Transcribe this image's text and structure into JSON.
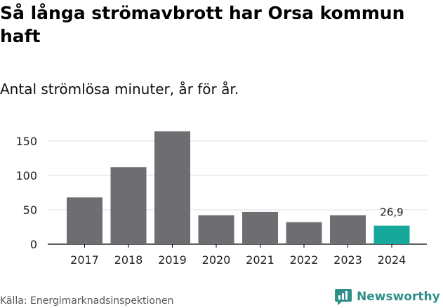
{
  "title": "Så långa strömavbrott har Orsa kommun haft",
  "subtitle": "Antal strömlösa minuter, år för år.",
  "source": "Källa: Energimarknadsinspektionen",
  "brand": {
    "name": "Newsworthy",
    "icon": "newsworthy-logo-icon",
    "color": "#2f8f89"
  },
  "chart_data": {
    "type": "bar",
    "title": "Så långa strömavbrott har Orsa kommun haft",
    "subtitle": "Antal strömlösa minuter, år för år.",
    "xlabel": "",
    "ylabel": "",
    "categories": [
      "2017",
      "2018",
      "2019",
      "2020",
      "2021",
      "2022",
      "2023",
      "2024"
    ],
    "values": [
      68,
      112,
      164,
      42,
      47,
      32,
      42,
      26.9
    ],
    "colors": [
      "#6e6d72",
      "#6e6d72",
      "#6e6d72",
      "#6e6d72",
      "#6e6d72",
      "#6e6d72",
      "#6e6d72",
      "#16a99b"
    ],
    "highlight_label": {
      "index": 7,
      "text": "26,9"
    },
    "yticks": [
      0,
      50,
      100,
      150
    ],
    "ytick_labels": [
      "0",
      "50",
      "100",
      "150"
    ],
    "ylim": [
      0,
      175
    ],
    "grid": true,
    "gridline_color": "#dddddd",
    "axis_color": "#000000"
  }
}
